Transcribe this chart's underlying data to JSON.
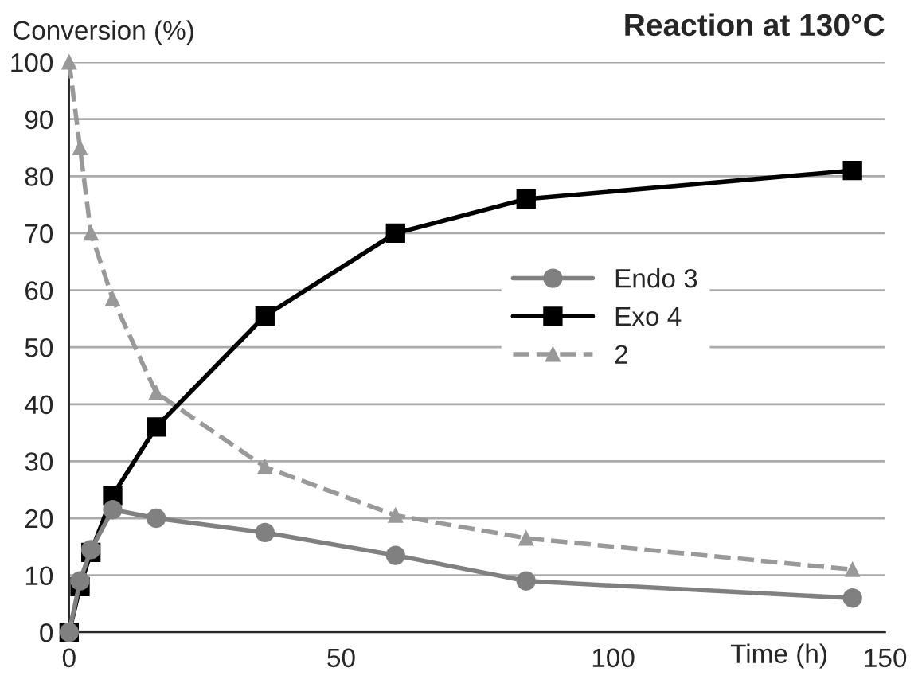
{
  "chart_data": {
    "type": "line",
    "title": "Reaction at 130°C",
    "xlabel": "Time (h)",
    "ylabel": "Conversion (%)",
    "x": [
      0,
      2,
      4,
      8,
      16,
      36,
      60,
      84,
      144
    ],
    "series": [
      {
        "name": "Endo 3",
        "color": "#808080",
        "marker": "circle",
        "line_style": "solid",
        "values": [
          0,
          9,
          14.5,
          21.5,
          20,
          17.5,
          13.5,
          9,
          6
        ]
      },
      {
        "name": "Exo 4",
        "color": "#000000",
        "marker": "square",
        "line_style": "solid",
        "values": [
          0,
          8,
          14,
          24,
          36,
          55.5,
          70,
          76,
          81
        ]
      },
      {
        "name": "2",
        "color": "#999999",
        "marker": "triangle",
        "line_style": "dashed",
        "values": [
          100,
          85,
          70,
          58.5,
          42,
          29,
          20.5,
          16.5,
          11
        ]
      }
    ],
    "xlim": [
      0,
      150
    ],
    "xticks": [
      0,
      50,
      100,
      150
    ],
    "ylim": [
      0,
      100
    ],
    "yticks": [
      0,
      10,
      20,
      30,
      40,
      50,
      60,
      70,
      80,
      90,
      100
    ],
    "grid": "y",
    "legend": "right"
  }
}
